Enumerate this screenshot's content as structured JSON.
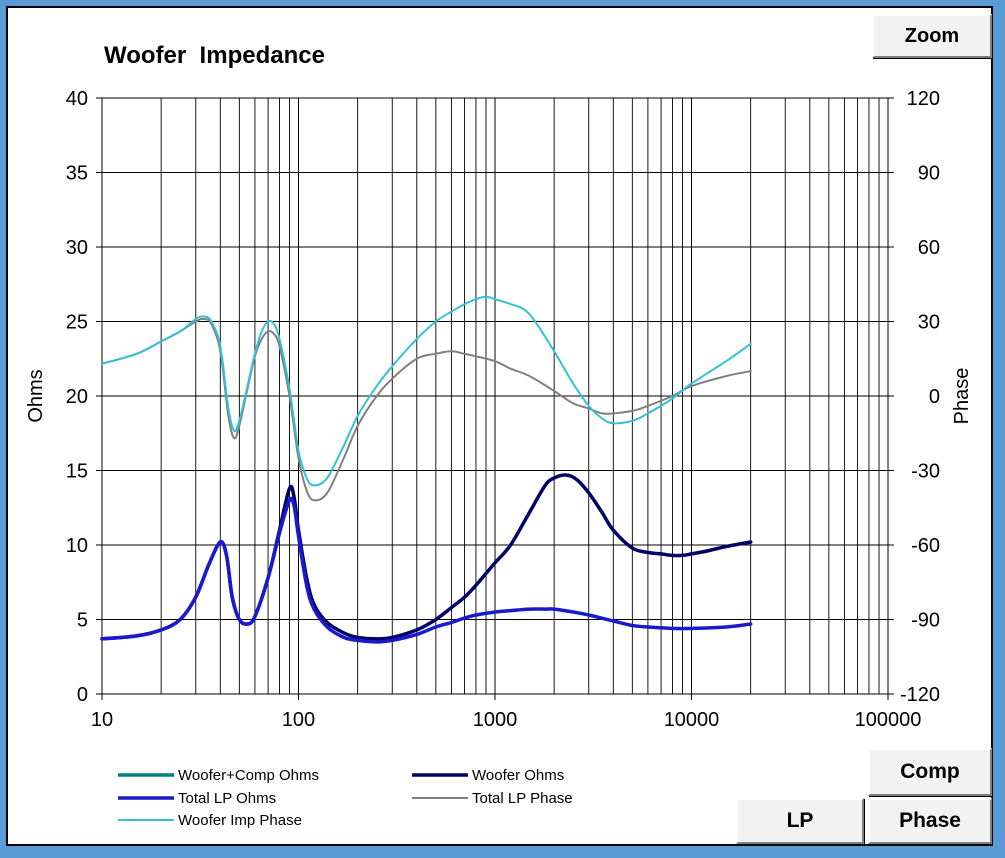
{
  "chart_data": {
    "type": "line",
    "title": "Woofer  Impedance",
    "xlabel": "",
    "ylabel": "Ohms",
    "y2label": "Phase",
    "xscale": "log",
    "xlim": [
      10,
      100000
    ],
    "ylim": [
      0,
      40
    ],
    "y2lim": [
      -120,
      120
    ],
    "x_ticks": [
      "10",
      "100",
      "1000",
      "10000",
      "100000"
    ],
    "y_ticks": [
      "0",
      "5",
      "10",
      "15",
      "20",
      "25",
      "30",
      "35",
      "40"
    ],
    "y2_ticks": [
      "-120",
      "-90",
      "-60",
      "-30",
      "0",
      "30",
      "60",
      "90",
      "120"
    ],
    "grid": true,
    "legend_position": "bottom",
    "series": [
      {
        "name": "Woofer+Comp Ohms",
        "axis": "left",
        "color": "#008080",
        "x": [
          10
        ],
        "y": [
          3.7
        ]
      },
      {
        "name": "Woofer Ohms",
        "axis": "left",
        "color": "#000066",
        "x": [
          10,
          15,
          20,
          25,
          30,
          35,
          40,
          43,
          46,
          50,
          55,
          60,
          70,
          80,
          90,
          95,
          100,
          110,
          120,
          140,
          170,
          200,
          250,
          300,
          400,
          500,
          600,
          700,
          800,
          1000,
          1200,
          1500,
          1800,
          2000,
          2300,
          2600,
          3000,
          3500,
          4000,
          5000,
          6000,
          7000,
          8000,
          9000,
          10000,
          12000,
          15000,
          20000
        ],
        "y": [
          3.7,
          3.9,
          4.3,
          5.0,
          6.5,
          8.7,
          10.2,
          9.3,
          6.5,
          5.0,
          4.7,
          5.2,
          7.8,
          11.0,
          13.8,
          13.2,
          11.0,
          7.8,
          6.0,
          4.8,
          4.1,
          3.8,
          3.7,
          3.8,
          4.3,
          5.0,
          5.8,
          6.5,
          7.3,
          8.8,
          10.0,
          12.2,
          14.0,
          14.5,
          14.7,
          14.4,
          13.5,
          12.2,
          11.0,
          9.8,
          9.5,
          9.4,
          9.3,
          9.3,
          9.4,
          9.6,
          9.9,
          10.2
        ]
      },
      {
        "name": "Total LP Ohms",
        "axis": "left",
        "color": "#1a1acc",
        "x": [
          10,
          15,
          20,
          25,
          30,
          35,
          40,
          43,
          46,
          50,
          55,
          60,
          70,
          80,
          90,
          95,
          100,
          110,
          120,
          140,
          170,
          200,
          250,
          300,
          400,
          500,
          600,
          700,
          800,
          1000,
          1200,
          1500,
          1800,
          2000,
          2500,
          3000,
          4000,
          5000,
          6000,
          8000,
          10000,
          15000,
          20000
        ],
        "y": [
          3.7,
          3.9,
          4.3,
          5.0,
          6.5,
          8.7,
          10.2,
          9.3,
          6.5,
          5.0,
          4.7,
          5.2,
          7.8,
          10.8,
          13.0,
          12.6,
          10.6,
          7.3,
          5.7,
          4.5,
          3.8,
          3.6,
          3.5,
          3.6,
          4.0,
          4.5,
          4.8,
          5.1,
          5.3,
          5.5,
          5.6,
          5.7,
          5.7,
          5.7,
          5.5,
          5.3,
          4.9,
          4.6,
          4.5,
          4.4,
          4.4,
          4.5,
          4.7
        ]
      },
      {
        "name": "Total LP Phase",
        "axis": "right",
        "color": "#808080",
        "x": [
          10,
          15,
          20,
          25,
          30,
          33,
          36,
          40,
          44,
          47,
          50,
          55,
          60,
          65,
          70,
          75,
          80,
          90,
          100,
          110,
          120,
          140,
          170,
          200,
          250,
          300,
          400,
          500,
          600,
          700,
          800,
          1000,
          1200,
          1500,
          2000,
          2500,
          3000,
          3500,
          4000,
          5000,
          6000,
          8000,
          10000,
          15000,
          20000
        ],
        "y": [
          13,
          17,
          22,
          26,
          30,
          31,
          29,
          18,
          -8,
          -17,
          -12,
          3,
          16,
          23,
          26,
          25,
          20,
          0,
          -25,
          -38,
          -42,
          -39,
          -25,
          -12,
          0,
          7,
          15,
          17,
          18,
          17,
          16,
          14,
          11,
          8,
          2,
          -3,
          -5,
          -7,
          -7,
          -6,
          -4,
          0,
          4,
          8,
          10
        ]
      },
      {
        "name": "Woofer Imp Phase",
        "axis": "right",
        "color": "#33c0d9",
        "x": [
          10,
          15,
          20,
          25,
          30,
          33,
          36,
          40,
          44,
          47,
          50,
          55,
          60,
          65,
          70,
          75,
          80,
          90,
          100,
          110,
          120,
          140,
          170,
          200,
          250,
          300,
          400,
          500,
          600,
          700,
          800,
          900,
          1000,
          1200,
          1400,
          1600,
          2000,
          2500,
          3000,
          3500,
          4000,
          5000,
          6000,
          8000,
          10000,
          15000,
          20000
        ],
        "y": [
          13,
          17,
          22,
          26,
          31,
          32,
          30,
          20,
          -5,
          -14,
          -10,
          4,
          17,
          26,
          30,
          29,
          23,
          3,
          -22,
          -33,
          -36,
          -33,
          -20,
          -8,
          4,
          12,
          23,
          30,
          34,
          37,
          39,
          40,
          39,
          37,
          35,
          30,
          18,
          5,
          -4,
          -9,
          -11,
          -10,
          -7,
          -1,
          5,
          14,
          21
        ]
      }
    ]
  },
  "buttons": {
    "zoom": "Zoom",
    "comp": "Comp",
    "lp": "LP",
    "phase": "Phase"
  }
}
